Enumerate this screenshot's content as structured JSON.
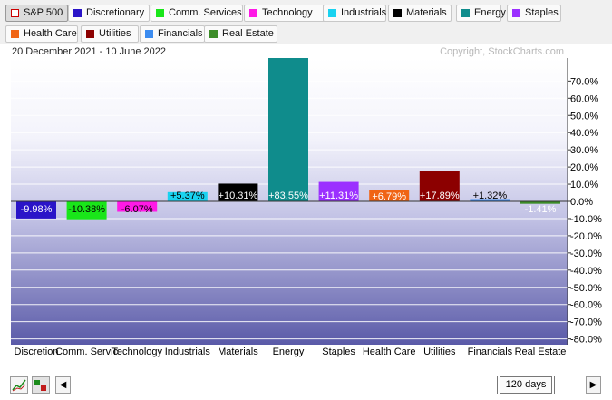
{
  "legend": [
    {
      "label": "S&P 500",
      "color": "#cc0000",
      "hollow": true,
      "active": true
    },
    {
      "label": "Discretionary",
      "color": "#2a14c8"
    },
    {
      "label": "Comm. Services",
      "color": "#19e619"
    },
    {
      "label": "Technology",
      "color": "#ff19e6"
    },
    {
      "label": "Industrials",
      "color": "#19d2f0"
    },
    {
      "label": "Materials",
      "color": "#000000"
    },
    {
      "label": "Energy",
      "color": "#0f8c8c"
    },
    {
      "label": "Staples",
      "color": "#9b30ff"
    },
    {
      "label": "Health Care",
      "color": "#f06414"
    },
    {
      "label": "Utilities",
      "color": "#8c0000"
    },
    {
      "label": "Financials",
      "color": "#3c8cf0"
    },
    {
      "label": "Real Estate",
      "color": "#3c8c28"
    }
  ],
  "date_range": "20 December 2021 - 10 June 2022",
  "copyright": "Copyright, StockCharts.com",
  "chart_data": {
    "type": "bar",
    "title": "",
    "xlabel": "",
    "ylabel": "",
    "ylim": [
      -85.0,
      83.55
    ],
    "y_tick_values": [
      70,
      60,
      50,
      40,
      30,
      20,
      10,
      0,
      -10,
      -20,
      -30,
      -40,
      -50,
      -60,
      -70,
      -80
    ],
    "y_tick_labels": [
      "70.0%",
      "60.0%",
      "50.0%",
      "40.0%",
      "30.0%",
      "20.0%",
      "10.0%",
      "0.0%",
      "-10.0%",
      "-20.0%",
      "-30.0%",
      "-40.0%",
      "-50.0%",
      "-60.0%",
      "-70.0%",
      "-80.0%"
    ],
    "categories": [
      "Discretion",
      "Comm. Servic",
      "Technology",
      "Industrials",
      "Materials",
      "Energy",
      "Staples",
      "Health Care",
      "Utilities",
      "Financials",
      "Real Estate"
    ],
    "values": [
      -9.98,
      -10.38,
      -6.07,
      5.37,
      10.31,
      83.55,
      11.31,
      6.79,
      17.89,
      1.32,
      -1.41
    ],
    "value_labels": [
      "-9.98%",
      "-10.38%",
      "-6.07%",
      "+5.37%",
      "+10.31%",
      "+83.55%",
      "+11.31%",
      "+6.79%",
      "+17.89%",
      "+1.32%",
      "-1.41%"
    ],
    "colors": [
      "#2a14c8",
      "#19e619",
      "#ff19e6",
      "#19d2f0",
      "#000000",
      "#0f8c8c",
      "#9b30ff",
      "#f06414",
      "#8c0000",
      "#3c8cf0",
      "#3c8c28"
    ],
    "label_colors": [
      "#ffffff",
      "#000000",
      "#000000",
      "#000000",
      "#ffffff",
      "#ffffff",
      "#ffffff",
      "#ffffff",
      "#ffffff",
      "#000000",
      "#ffffff"
    ],
    "grid": true,
    "legend_position": "top"
  },
  "footer": {
    "days_label": "120 days",
    "prev_arrow": "◀",
    "next_arrow": "▶"
  }
}
